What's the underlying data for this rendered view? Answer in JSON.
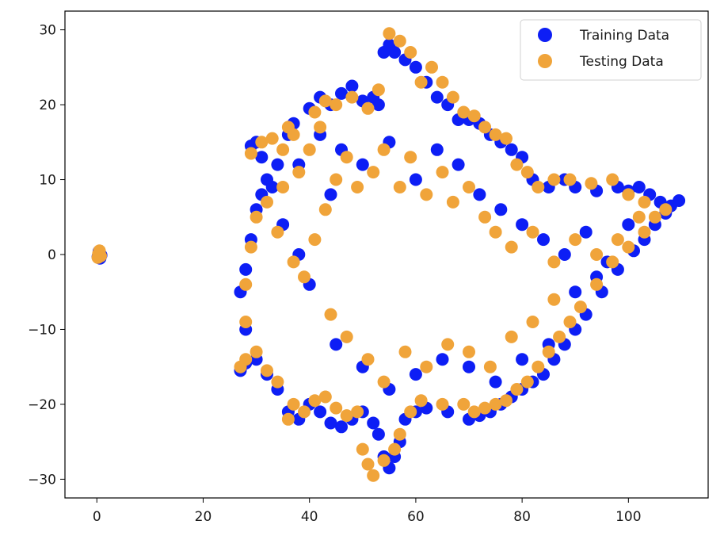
{
  "chart_data": {
    "type": "scatter",
    "xlim": [
      -6,
      115
    ],
    "ylim": [
      -32.5,
      32.5
    ],
    "xticks": [
      0,
      20,
      40,
      60,
      80,
      100
    ],
    "yticks": [
      -30,
      -20,
      -10,
      0,
      10,
      20,
      30
    ],
    "grid": false,
    "legend_position": "top-right",
    "series": [
      {
        "name": "Training Data",
        "color": "#0d1ef5",
        "points": [
          [
            0.2,
            -0.3
          ],
          [
            0.5,
            0.2
          ],
          [
            0.8,
            -0.1
          ],
          [
            0.4,
            0.4
          ],
          [
            0.6,
            -0.5
          ],
          [
            27,
            -15.5
          ],
          [
            28,
            -14.5
          ],
          [
            29,
            14.5
          ],
          [
            30,
            15
          ],
          [
            31,
            13
          ],
          [
            32,
            10
          ],
          [
            33,
            9
          ],
          [
            34,
            12
          ],
          [
            36,
            16
          ],
          [
            37,
            17.5
          ],
          [
            40,
            19.5
          ],
          [
            42,
            21
          ],
          [
            44,
            20
          ],
          [
            46,
            21.5
          ],
          [
            48,
            22.5
          ],
          [
            50,
            20.5
          ],
          [
            52,
            21
          ],
          [
            53,
            20
          ],
          [
            54,
            27
          ],
          [
            55,
            28
          ],
          [
            56,
            27
          ],
          [
            58,
            26
          ],
          [
            60,
            25
          ],
          [
            62,
            23
          ],
          [
            64,
            21
          ],
          [
            66,
            20
          ],
          [
            68,
            18
          ],
          [
            70,
            18
          ],
          [
            72,
            17.5
          ],
          [
            74,
            16
          ],
          [
            76,
            15
          ],
          [
            78,
            14
          ],
          [
            80,
            13
          ],
          [
            82,
            10
          ],
          [
            85,
            9
          ],
          [
            88,
            10
          ],
          [
            90,
            9
          ],
          [
            94,
            8.5
          ],
          [
            98,
            9
          ],
          [
            100,
            8.5
          ],
          [
            102,
            9
          ],
          [
            104,
            8
          ],
          [
            106,
            7
          ],
          [
            108,
            6.5
          ],
          [
            109.5,
            7.2
          ],
          [
            107,
            5.5
          ],
          [
            105,
            4
          ],
          [
            103,
            2
          ],
          [
            101,
            0.5
          ],
          [
            98,
            -2
          ],
          [
            95,
            -5
          ],
          [
            92,
            -8
          ],
          [
            90,
            -10
          ],
          [
            88,
            -12
          ],
          [
            86,
            -14
          ],
          [
            84,
            -16
          ],
          [
            82,
            -17
          ],
          [
            80,
            -18
          ],
          [
            78,
            -19
          ],
          [
            76,
            -20
          ],
          [
            74,
            -21
          ],
          [
            72,
            -21.5
          ],
          [
            70,
            -22
          ],
          [
            66,
            -21
          ],
          [
            62,
            -20.5
          ],
          [
            60,
            -21
          ],
          [
            58,
            -22
          ],
          [
            57,
            -25
          ],
          [
            56,
            -27
          ],
          [
            55,
            -28.5
          ],
          [
            54,
            -27
          ],
          [
            53,
            -24
          ],
          [
            52,
            -22.5
          ],
          [
            50,
            -21
          ],
          [
            48,
            -22
          ],
          [
            46,
            -23
          ],
          [
            44,
            -22.5
          ],
          [
            42,
            -21
          ],
          [
            40,
            -20
          ],
          [
            38,
            -22
          ],
          [
            36,
            -21
          ],
          [
            34,
            -18
          ],
          [
            32,
            -16
          ],
          [
            30,
            -14
          ],
          [
            28,
            -10
          ],
          [
            27,
            -5
          ],
          [
            28,
            -2
          ],
          [
            29,
            2
          ],
          [
            30,
            6
          ],
          [
            31,
            8
          ],
          [
            35,
            4
          ],
          [
            38,
            0
          ],
          [
            40,
            -4
          ],
          [
            44,
            8
          ],
          [
            46,
            14
          ],
          [
            50,
            12
          ],
          [
            55,
            15
          ],
          [
            60,
            10
          ],
          [
            64,
            14
          ],
          [
            68,
            12
          ],
          [
            72,
            8
          ],
          [
            76,
            6
          ],
          [
            80,
            4
          ],
          [
            84,
            2
          ],
          [
            88,
            0
          ],
          [
            92,
            3
          ],
          [
            96,
            -1
          ],
          [
            100,
            4
          ],
          [
            45,
            -12
          ],
          [
            50,
            -15
          ],
          [
            55,
            -18
          ],
          [
            60,
            -16
          ],
          [
            65,
            -14
          ],
          [
            70,
            -15
          ],
          [
            75,
            -17
          ],
          [
            80,
            -14
          ],
          [
            85,
            -12
          ],
          [
            90,
            -5
          ],
          [
            94,
            -3
          ],
          [
            38,
            12
          ],
          [
            42,
            16
          ]
        ]
      },
      {
        "name": "Testing Data",
        "color": "#f0a43a",
        "points": [
          [
            0.3,
            0.1
          ],
          [
            0.7,
            -0.2
          ],
          [
            0.5,
            0.5
          ],
          [
            0.2,
            -0.4
          ],
          [
            27,
            -15
          ],
          [
            28,
            -14
          ],
          [
            29,
            13.5
          ],
          [
            31,
            15
          ],
          [
            33,
            15.5
          ],
          [
            35,
            14
          ],
          [
            36,
            17
          ],
          [
            37,
            16
          ],
          [
            41,
            19
          ],
          [
            43,
            20.5
          ],
          [
            45,
            20
          ],
          [
            48,
            21
          ],
          [
            51,
            19.5
          ],
          [
            53,
            22
          ],
          [
            55,
            29.5
          ],
          [
            57,
            28.5
          ],
          [
            59,
            27
          ],
          [
            61,
            23
          ],
          [
            63,
            25
          ],
          [
            65,
            23
          ],
          [
            67,
            21
          ],
          [
            69,
            19
          ],
          [
            71,
            18.5
          ],
          [
            73,
            17
          ],
          [
            75,
            16
          ],
          [
            77,
            15.5
          ],
          [
            79,
            12
          ],
          [
            81,
            11
          ],
          [
            83,
            9
          ],
          [
            86,
            10
          ],
          [
            89,
            10
          ],
          [
            93,
            9.5
          ],
          [
            97,
            10
          ],
          [
            100,
            8
          ],
          [
            103,
            7
          ],
          [
            105,
            5
          ],
          [
            107,
            6
          ],
          [
            103,
            3
          ],
          [
            100,
            1
          ],
          [
            97,
            -1
          ],
          [
            94,
            -4
          ],
          [
            91,
            -7
          ],
          [
            89,
            -9
          ],
          [
            87,
            -11
          ],
          [
            85,
            -13
          ],
          [
            83,
            -15
          ],
          [
            81,
            -17
          ],
          [
            79,
            -18
          ],
          [
            77,
            -19.5
          ],
          [
            75,
            -20
          ],
          [
            73,
            -20.5
          ],
          [
            71,
            -21
          ],
          [
            69,
            -20
          ],
          [
            65,
            -20
          ],
          [
            61,
            -19.5
          ],
          [
            59,
            -21
          ],
          [
            57,
            -24
          ],
          [
            56,
            -26
          ],
          [
            54,
            -27.5
          ],
          [
            52,
            -29.5
          ],
          [
            51,
            -28
          ],
          [
            50,
            -26
          ],
          [
            49,
            -21
          ],
          [
            47,
            -21.5
          ],
          [
            45,
            -20.5
          ],
          [
            43,
            -19
          ],
          [
            41,
            -19.5
          ],
          [
            39,
            -21
          ],
          [
            37,
            -20
          ],
          [
            36,
            -22
          ],
          [
            34,
            -17
          ],
          [
            32,
            -15.5
          ],
          [
            30,
            -13
          ],
          [
            28,
            -9
          ],
          [
            28,
            -4
          ],
          [
            29,
            1
          ],
          [
            30,
            5
          ],
          [
            32,
            7
          ],
          [
            34,
            3
          ],
          [
            37,
            -1
          ],
          [
            39,
            -3
          ],
          [
            41,
            2
          ],
          [
            43,
            6
          ],
          [
            45,
            10
          ],
          [
            47,
            13
          ],
          [
            49,
            9
          ],
          [
            52,
            11
          ],
          [
            54,
            14
          ],
          [
            57,
            9
          ],
          [
            59,
            13
          ],
          [
            62,
            8
          ],
          [
            65,
            11
          ],
          [
            67,
            7
          ],
          [
            70,
            9
          ],
          [
            73,
            5
          ],
          [
            75,
            3
          ],
          [
            78,
            1
          ],
          [
            82,
            3
          ],
          [
            86,
            -1
          ],
          [
            90,
            2
          ],
          [
            94,
            0
          ],
          [
            98,
            2
          ],
          [
            102,
            5
          ],
          [
            44,
            -8
          ],
          [
            47,
            -11
          ],
          [
            51,
            -14
          ],
          [
            54,
            -17
          ],
          [
            58,
            -13
          ],
          [
            62,
            -15
          ],
          [
            66,
            -12
          ],
          [
            70,
            -13
          ],
          [
            74,
            -15
          ],
          [
            78,
            -11
          ],
          [
            82,
            -9
          ],
          [
            86,
            -6
          ],
          [
            35,
            9
          ],
          [
            38,
            11
          ],
          [
            40,
            14
          ],
          [
            42,
            17
          ]
        ]
      }
    ]
  }
}
